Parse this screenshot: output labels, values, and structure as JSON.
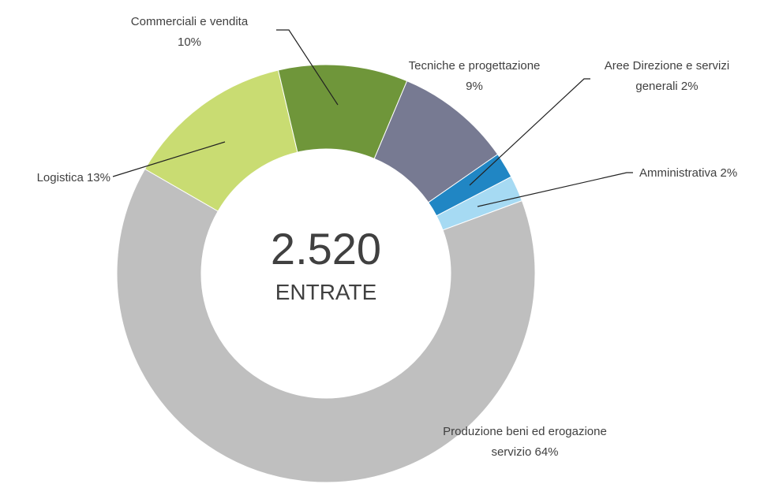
{
  "chart_data": {
    "type": "donut",
    "categories": [
      "Logistica",
      "Commerciali e vendita",
      "Tecniche e progettazione",
      "Aree Direzione e servizi generali",
      "Amministrativa",
      "Produzione beni ed erogazione servizio"
    ],
    "values": [
      13,
      10,
      9,
      2,
      2,
      64
    ],
    "value_labels": [
      "13%",
      "10%",
      "9%",
      "2%",
      "2%",
      "64%"
    ],
    "colors": [
      "#c9dc72",
      "#6f963a",
      "#777a92",
      "#2086c4",
      "#a6daf3",
      "#bfbfbf"
    ],
    "center": {
      "value": 2520,
      "label": "2.520"
    },
    "center_caption": "ENTRATE"
  }
}
